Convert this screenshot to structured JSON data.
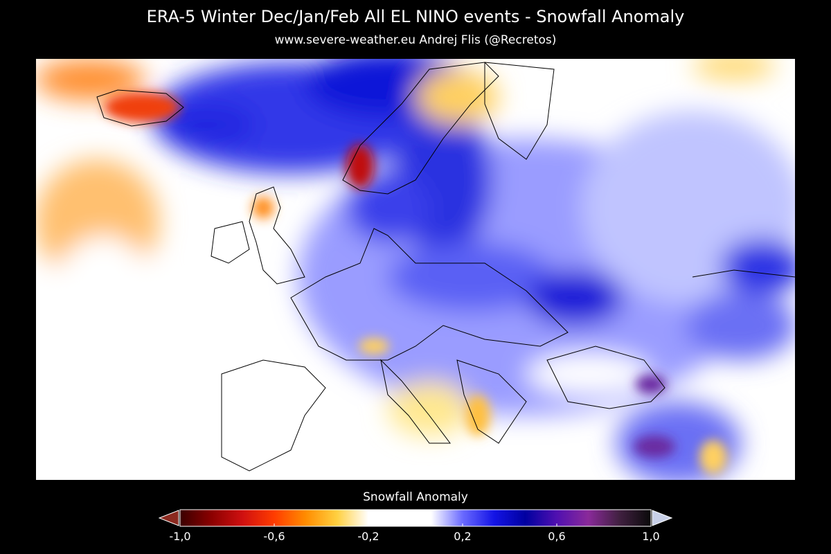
{
  "header": {
    "title": "ERA-5  Winter Dec/Jan/Feb  All EL NINO events  -  Snowfall Anomaly",
    "subtitle": "www.severe-weather.eu   Andrej Flis (@Recretos)"
  },
  "colorbar": {
    "label": "Snowfall Anomaly",
    "lim": [
      -1,
      1
    ],
    "ticks": [
      {
        "value": -1,
        "label": "-1,0"
      },
      {
        "value": -0.6,
        "label": "-0,6"
      },
      {
        "value": -0.2,
        "label": "-0,2"
      },
      {
        "value": 0.2,
        "label": "0,2"
      },
      {
        "value": 0.6,
        "label": "0,6"
      },
      {
        "value": 1,
        "label": "1,0"
      }
    ],
    "colors": [
      "#3a0000",
      "#8b0000",
      "#d01010",
      "#ff3c00",
      "#ff8c00",
      "#ffd040",
      "#ffffff",
      "#ffffff",
      "#ffffff",
      "#6a6aff",
      "#1414e6",
      "#0000a0",
      "#5010b0",
      "#8a2a9a",
      "#402040",
      "#0a0a0a"
    ],
    "under_color": "#8b2a20",
    "over_color": "#c8d0e8"
  }
}
